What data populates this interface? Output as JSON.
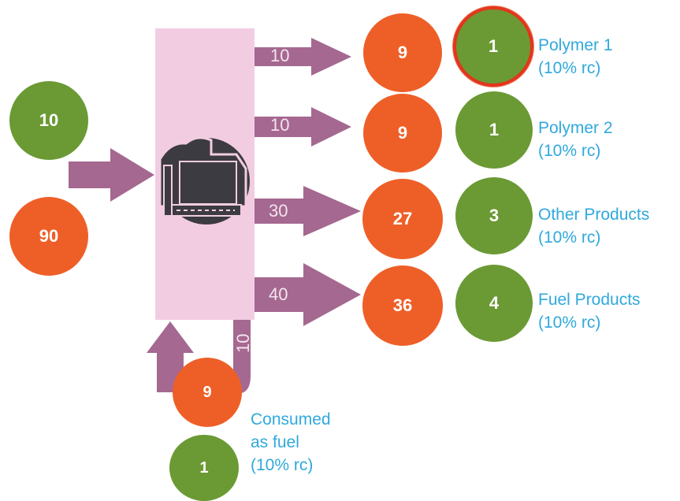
{
  "inputs": [
    {
      "value": "10",
      "color": "#6b9a34"
    },
    {
      "value": "90",
      "color": "#ee5f28"
    }
  ],
  "flows": [
    {
      "amount": "10"
    },
    {
      "amount": "10"
    },
    {
      "amount": "30"
    },
    {
      "amount": "40"
    }
  ],
  "recycle_flow": {
    "amount": "10"
  },
  "outputs": [
    {
      "orange": "9",
      "green": "1",
      "label_line1": "Polymer 1",
      "label_line2": "(10% rc)"
    },
    {
      "orange": "9",
      "green": "1",
      "label_line1": "Polymer 2",
      "label_line2": "(10% rc)"
    },
    {
      "orange": "27",
      "green": "3",
      "label_line1": "Other Products",
      "label_line2": "(10% rc)"
    },
    {
      "orange": "36",
      "green": "4",
      "label_line1": "Fuel Products",
      "label_line2": "(10% rc)"
    }
  ],
  "fuel": {
    "orange": "9",
    "green": "1",
    "label_line1": "Consumed",
    "label_line2": "as fuel",
    "label_line3": "(10% rc)"
  },
  "icons": {
    "refinery": "refinery-icon"
  },
  "colors": {
    "green": "#6b9a34",
    "orange": "#ee5f28",
    "arrow": "#a56890",
    "process_box": "#f2cde2",
    "label": "#2fa9dc",
    "highlight": "#e2361c"
  }
}
